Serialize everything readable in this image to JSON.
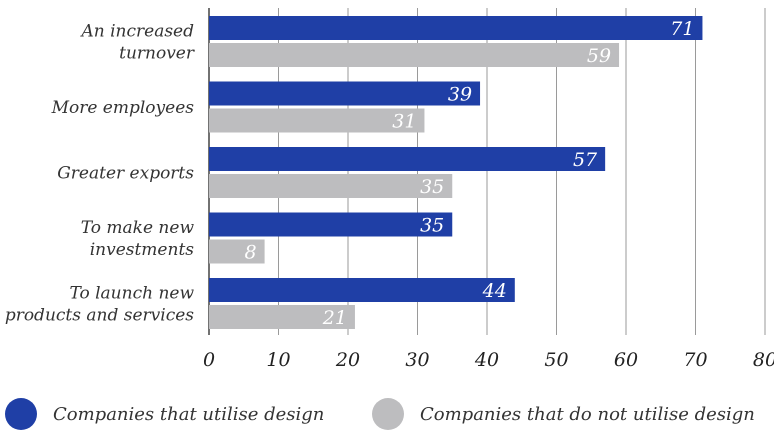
{
  "chart_data": {
    "type": "bar",
    "orientation": "horizontal",
    "categories": [
      [
        "An increased",
        "turnover"
      ],
      [
        "More employees"
      ],
      [
        "Greater exports"
      ],
      [
        "To make new",
        "investments"
      ],
      [
        "To launch new",
        "products and services"
      ]
    ],
    "series": [
      {
        "name": "Companies that utilise design",
        "color": "#1f3fa6",
        "values": [
          71,
          39,
          57,
          35,
          44
        ]
      },
      {
        "name": "Companies that do not utilise design",
        "color": "#bdbdbf",
        "values": [
          59,
          31,
          35,
          8,
          21
        ]
      }
    ],
    "xlim": [
      0,
      80
    ],
    "xticks": [
      0,
      10,
      20,
      30,
      40,
      50,
      60,
      70,
      80
    ],
    "grid": true,
    "legend_position": "bottom",
    "title": "",
    "xlabel": "",
    "ylabel": ""
  }
}
